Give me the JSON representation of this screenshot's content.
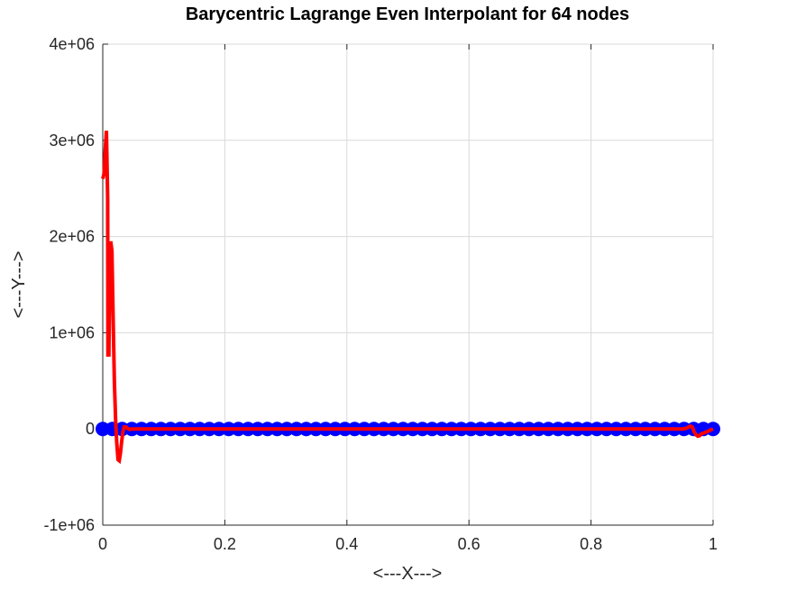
{
  "chart_data": {
    "type": "line",
    "title": "Barycentric Lagrange Even Interpolant for 64 nodes",
    "xlabel": "<---X--->",
    "ylabel": "<---Y--->",
    "xlim": [
      0,
      1
    ],
    "ylim": [
      -1000000,
      4000000
    ],
    "x_ticks": [
      0,
      0.2,
      0.4,
      0.6,
      0.8,
      1
    ],
    "x_tick_labels": [
      "0",
      "0.2",
      "0.4",
      "0.6",
      "0.8",
      "1"
    ],
    "y_ticks": [
      -1000000,
      0,
      1000000,
      2000000,
      3000000,
      4000000
    ],
    "y_tick_labels": [
      "-1e+06",
      "0",
      "1e+06",
      "2e+06",
      "3e+06",
      "4e+06"
    ],
    "grid": true,
    "colors": {
      "nodes": "#0000ff",
      "interpolant": "#ff0000"
    },
    "series": [
      {
        "type": "scatter",
        "marker": "filled-circle",
        "points": {
          "x_start": 0,
          "x_end": 1,
          "count": 64,
          "y": 0
        }
      },
      {
        "type": "line",
        "x": [
          0,
          0.002,
          0.004,
          0.006,
          0.008,
          0.0085,
          0.01,
          0.0115,
          0.013,
          0.015,
          0.017,
          0.019,
          0.021,
          0.023,
          0.025,
          0.027,
          0.029,
          0.031,
          0.033,
          0.035,
          0.038,
          0.041,
          0.044,
          0.048,
          0.06,
          0.1,
          0.2,
          0.3,
          0.4,
          0.5,
          0.6,
          0.7,
          0.8,
          0.9,
          0.94,
          0.95,
          0.955,
          0.96,
          0.963,
          0.966,
          0.969,
          0.972,
          0.975,
          0.978,
          0.981,
          0.984,
          0.987,
          0.99,
          0.993,
          0.996,
          1
        ],
        "y": [
          2600000,
          2650000,
          2900000,
          3100000,
          2400000,
          770000,
          770000,
          1650000,
          1950000,
          1850000,
          1150000,
          500000,
          100000,
          -150000,
          -320000,
          -330000,
          -250000,
          -130000,
          -30000,
          20000,
          20000,
          5000,
          -5000,
          0,
          0,
          0,
          0,
          0,
          0,
          0,
          0,
          0,
          0,
          0,
          0,
          0,
          5000,
          20000,
          30000,
          20000,
          -30000,
          -60000,
          -75000,
          -70000,
          -50000,
          -45000,
          -35000,
          -30000,
          -20000,
          -10000,
          0
        ]
      }
    ]
  }
}
